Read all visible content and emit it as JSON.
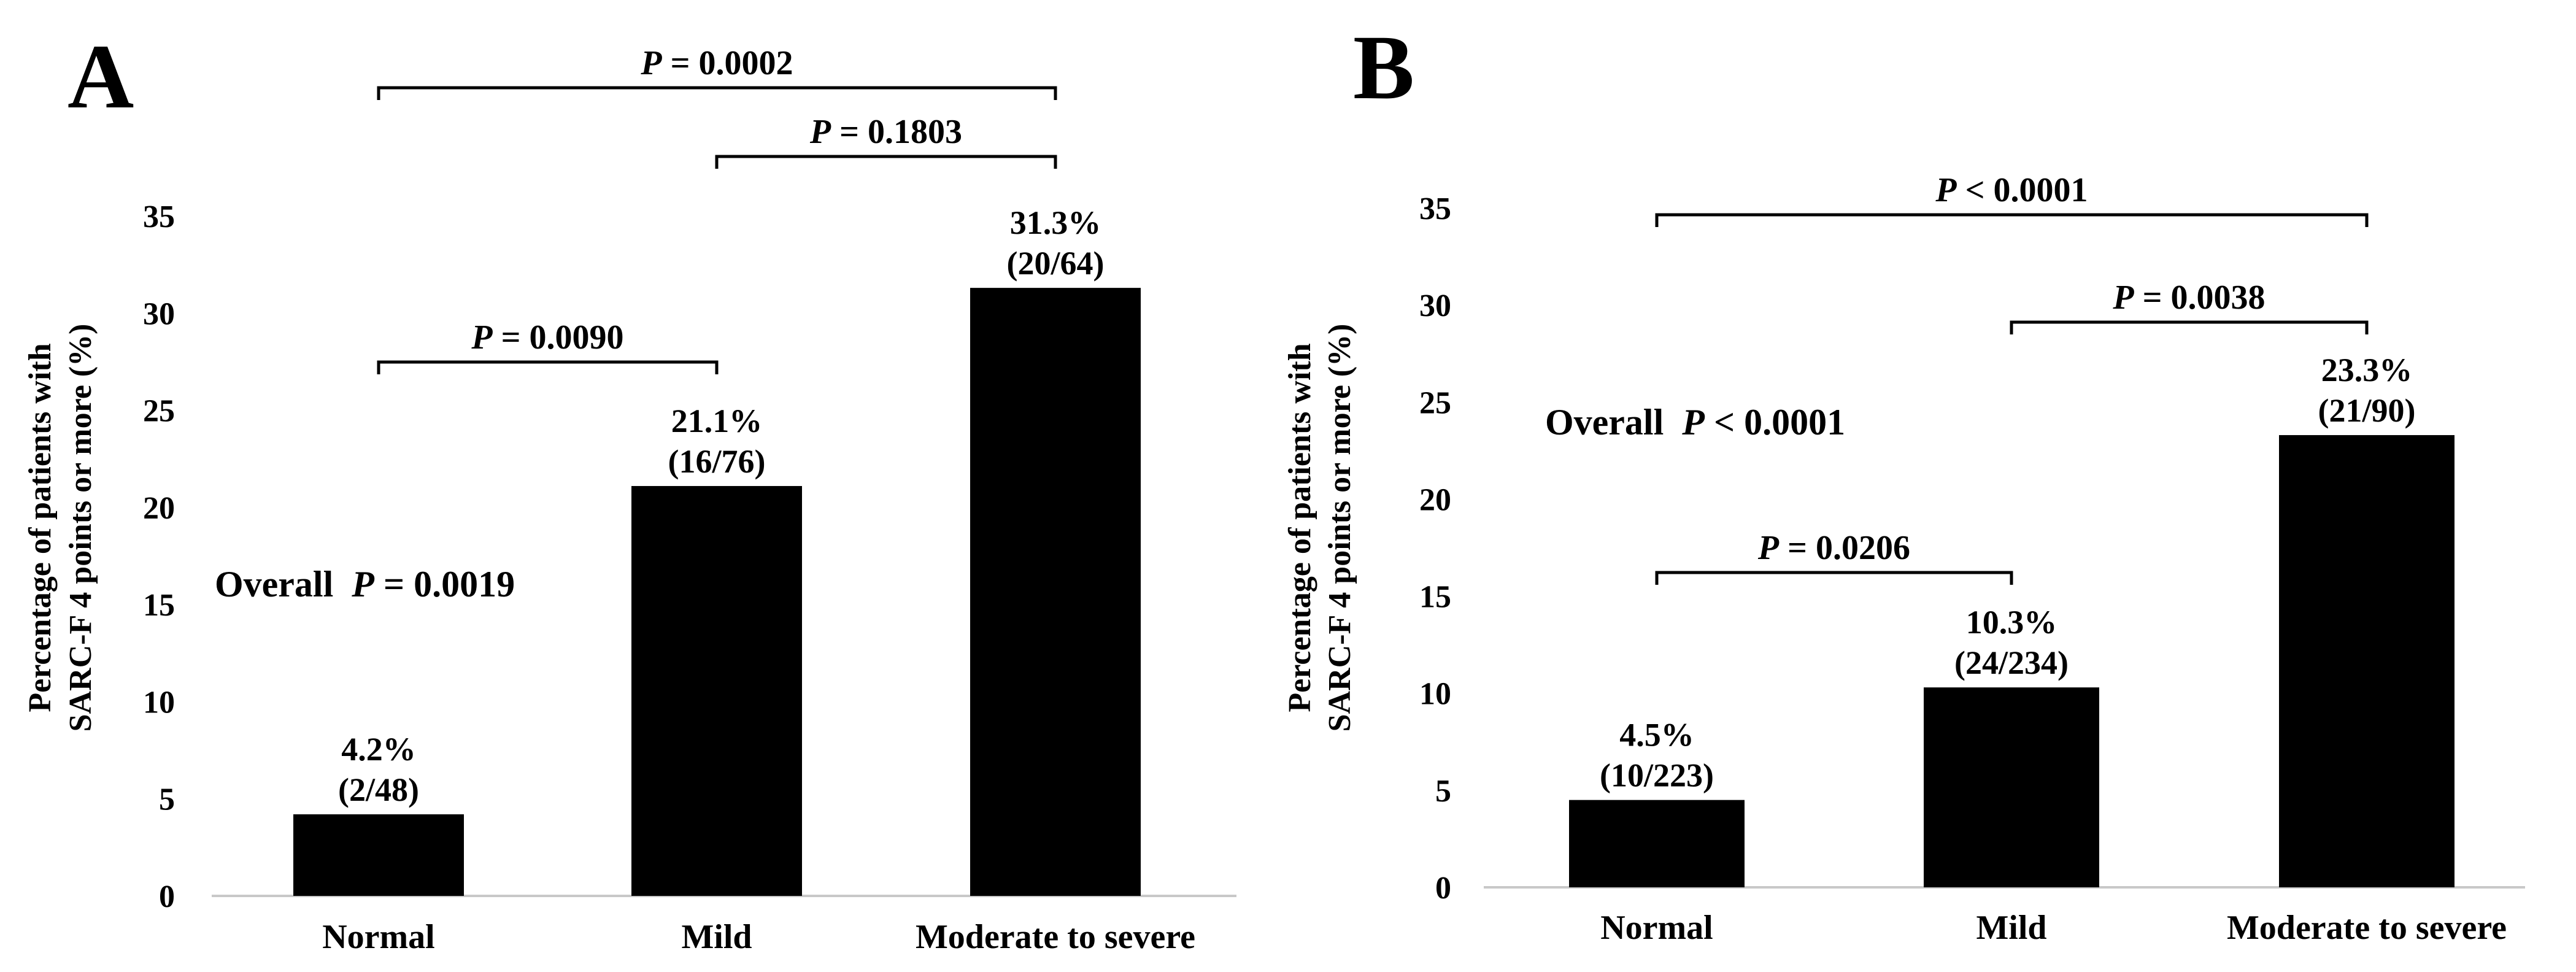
{
  "chart_data": [
    {
      "type": "bar",
      "panel_label": "A",
      "title": "",
      "xlabel": "",
      "ylabel": [
        "Percentage of patients with",
        "SARC-F 4 points or more (%)"
      ],
      "ylim": [
        0,
        35
      ],
      "yticks": [
        0,
        5,
        10,
        15,
        20,
        25,
        30,
        35
      ],
      "grid": false,
      "categories": [
        "Normal",
        "Mild",
        "Moderate to severe"
      ],
      "values": [
        4.2,
        21.1,
        31.3
      ],
      "bar_labels": [
        {
          "pct": "4.2%",
          "count": "(2/48)"
        },
        {
          "pct": "21.1%",
          "count": "(16/76)"
        },
        {
          "pct": "31.3%",
          "count": "(20/64)"
        }
      ],
      "overall": {
        "prefix": "Overall",
        "p": "P",
        "rest": " = 0.0019"
      },
      "comparisons": [
        {
          "from": 0,
          "to": 1,
          "p": "P",
          "rest": " = 0.0090"
        },
        {
          "from": 1,
          "to": 2,
          "p": "P",
          "rest": " = 0.1803"
        },
        {
          "from": 0,
          "to": 2,
          "p": "P",
          "rest": " = 0.0002"
        }
      ],
      "colors": {
        "bar": "#000000",
        "axis": "#c8c8c8",
        "text": "#000000"
      }
    },
    {
      "type": "bar",
      "panel_label": "B",
      "title": "",
      "xlabel": "",
      "ylabel": [
        "Percentage of patients with",
        "SARC-F 4 points or more (%)"
      ],
      "ylim": [
        0,
        35
      ],
      "yticks": [
        0,
        5,
        10,
        15,
        20,
        25,
        30,
        35
      ],
      "grid": false,
      "categories": [
        "Normal",
        "Mild",
        "Moderate to severe"
      ],
      "values": [
        4.5,
        10.3,
        23.3
      ],
      "bar_labels": [
        {
          "pct": "4.5%",
          "count": "(10/223)"
        },
        {
          "pct": "10.3%",
          "count": "(24/234)"
        },
        {
          "pct": "23.3%",
          "count": "(21/90)"
        }
      ],
      "overall": {
        "prefix": "Overall",
        "p": "P",
        "rest": " < 0.0001"
      },
      "comparisons": [
        {
          "from": 0,
          "to": 1,
          "p": "P",
          "rest": " = 0.0206"
        },
        {
          "from": 1,
          "to": 2,
          "p": "P",
          "rest": " = 0.0038"
        },
        {
          "from": 0,
          "to": 2,
          "p": "P",
          "rest": " < 0.0001"
        }
      ],
      "colors": {
        "bar": "#000000",
        "axis": "#c8c8c8",
        "text": "#000000"
      }
    }
  ]
}
